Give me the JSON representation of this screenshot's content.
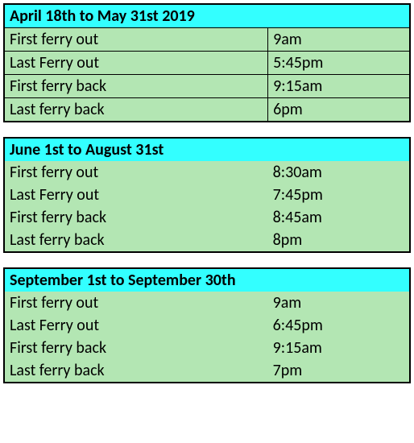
{
  "tables": [
    {
      "title": "April 18th to May 31st 2019",
      "grid": true,
      "rows": [
        {
          "label": "First ferry out",
          "time": "9am"
        },
        {
          "label": "Last Ferry out",
          "time": "5:45pm"
        },
        {
          "label": "First ferry back",
          "time": "9:15am"
        },
        {
          "label": "Last ferry back",
          "time": "6pm"
        }
      ]
    },
    {
      "title": "June 1st to August 31st",
      "grid": false,
      "rows": [
        {
          "label": "First ferry out",
          "time": "8:30am"
        },
        {
          "label": "Last Ferry out",
          "time": "7:45pm"
        },
        {
          "label": "First ferry back",
          "time": "8:45am"
        },
        {
          "label": "Last ferry back",
          "time": "8pm"
        }
      ]
    },
    {
      "title": "September 1st to September 30th",
      "grid": false,
      "rows": [
        {
          "label": "First ferry out",
          "time": "9am"
        },
        {
          "label": "Last Ferry out",
          "time": "6:45pm"
        },
        {
          "label": "First ferry back",
          "time": "9:15am"
        },
        {
          "label": "Last ferry back",
          "time": "7pm"
        }
      ]
    }
  ],
  "colors": {
    "header_bg": "#33ffff",
    "body_bg": "#b3e6b3",
    "border": "#000000",
    "page_bg": "#ffffff",
    "text": "#000000"
  },
  "font": {
    "family": "Calibri",
    "size_pt": 15,
    "header_weight": "bold"
  }
}
